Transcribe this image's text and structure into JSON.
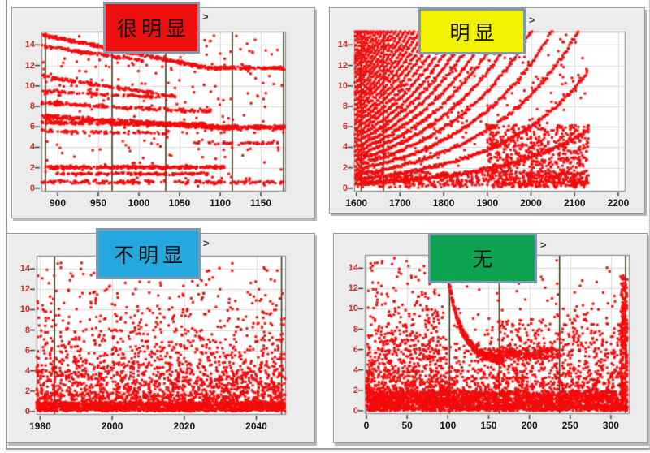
{
  "colors": {
    "page_bg": "#ffffff",
    "panel_bg": "#ececec",
    "plot_bg": "#ffffff",
    "grid": "#d9d9d9",
    "frame": "#8a8a8a",
    "cursor": "#3d3d1c",
    "tick": "#333333",
    "y_tick_color": "#cf2a2a",
    "x_tick_color": "#141414",
    "badge_border": "#7d9ab5",
    "outer_frame": "#8e9296"
  },
  "chart_data": [
    {
      "id": "very-obvious",
      "type": "scatter",
      "badge": {
        "text": "很明显",
        "fill": "#ee0f0f",
        "border": "#7d9ab5",
        "text_color": "#141414"
      },
      "hint": ">",
      "point": {
        "color": "#f40b0b",
        "size": 3
      },
      "xlim": [
        880,
        1180
      ],
      "ylim": [
        -0.25,
        15.3
      ],
      "xticks": [
        900,
        950,
        1000,
        1050,
        1100,
        1150
      ],
      "yticks": [
        0,
        2,
        4,
        6,
        8,
        10,
        12,
        14
      ],
      "cursor_lines": [
        885,
        967,
        1033,
        1115,
        1178
      ],
      "seed": 101,
      "generators": [
        {
          "kind": "track",
          "x0": 880,
          "xf": 1085,
          "x1": 1180,
          "ya": 15.0,
          "yb": 11.75,
          "n": 400,
          "jy": 0.2
        },
        {
          "kind": "track",
          "x0": 880,
          "xf": 1005,
          "x1": 1005,
          "ya": 13.9,
          "yb": 12.45,
          "n": 110,
          "jy": 0.18
        },
        {
          "kind": "track",
          "x0": 880,
          "xf": 1045,
          "x1": 1045,
          "ya": 10.95,
          "yb": 8.95,
          "n": 140,
          "jy": 0.18
        },
        {
          "kind": "track",
          "x0": 880,
          "xf": 1030,
          "x1": 1030,
          "ya": 9.5,
          "yb": 8.85,
          "n": 90,
          "jy": 0.15
        },
        {
          "kind": "track",
          "x0": 880,
          "xf": 1060,
          "x1": 1090,
          "ya": 8.35,
          "yb": 7.55,
          "n": 170,
          "jy": 0.2
        },
        {
          "kind": "track",
          "x0": 880,
          "xf": 1095,
          "x1": 1180,
          "ya": 7.05,
          "yb": 5.95,
          "n": 520,
          "jy": 0.24
        },
        {
          "kind": "track",
          "x0": 880,
          "xf": 1085,
          "x1": 1085,
          "ya": 6.45,
          "yb": 6.2,
          "n": 260,
          "jy": 0.22
        },
        {
          "kind": "track",
          "x0": 880,
          "xf": 1035,
          "x1": 1035,
          "ya": 5.6,
          "yb": 5.35,
          "n": 80,
          "jy": 0.18
        },
        {
          "kind": "track",
          "x0": 1055,
          "xf": 1180,
          "x1": 1180,
          "ya": 4.45,
          "yb": 4.4,
          "n": 45,
          "jy": 0.15
        },
        {
          "kind": "track",
          "x0": 885,
          "xf": 1105,
          "x1": 1105,
          "ya": 2.05,
          "yb": 2.05,
          "n": 300,
          "jy": 0.17
        },
        {
          "kind": "track",
          "x0": 895,
          "xf": 1085,
          "x1": 1085,
          "ya": 1.4,
          "yb": 1.4,
          "n": 150,
          "jy": 0.15
        },
        {
          "kind": "track",
          "x0": 880,
          "xf": 1180,
          "x1": 1180,
          "ya": 0.6,
          "yb": 0.6,
          "n": 170,
          "jy": 0.2
        },
        {
          "kind": "uniform",
          "x0": 880,
          "x1": 1180,
          "y0": 0.2,
          "y1": 15.0,
          "n": 260
        }
      ]
    },
    {
      "id": "obvious",
      "type": "scatter",
      "badge": {
        "text": "明显",
        "fill": "#f2f202",
        "border": "#7d9ab5",
        "text_color": "#141414"
      },
      "hint": ">",
      "point": {
        "color": "#f40b0b",
        "size": 3
      },
      "xlim": [
        1595,
        2215
      ],
      "ylim": [
        -0.25,
        15.3
      ],
      "xticks": [
        1600,
        1700,
        1800,
        1900,
        2000,
        2100,
        2200
      ],
      "yticks": [
        0,
        2,
        4,
        6,
        8,
        10,
        12,
        14
      ],
      "cursor_lines": [
        1611,
        1662
      ],
      "seed": 202,
      "generators": [
        {
          "kind": "fan",
          "x0": 1598,
          "x1": 2132,
          "tau": 210,
          "b_step": 0.45,
          "count": 34,
          "step": 2.2,
          "jy": 0.22
        },
        {
          "kind": "uniform",
          "x0": 1900,
          "x1": 2132,
          "y0": 0.2,
          "y1": 6.2,
          "n": 650
        },
        {
          "kind": "uniform",
          "x0": 1598,
          "x1": 2132,
          "y0": 0.05,
          "y1": 1.6,
          "n": 480
        },
        {
          "kind": "uniform",
          "x0": 1598,
          "x1": 2132,
          "y0": 0.0,
          "y1": 15.2,
          "n": 260
        }
      ]
    },
    {
      "id": "not-obvious",
      "type": "scatter",
      "badge": {
        "text": "不明显",
        "fill": "#25a7e0",
        "border": "#7d9ab5",
        "text_color": "#141414"
      },
      "hint": ">",
      "point": {
        "color": "#f40b0b",
        "size": 3
      },
      "xlim": [
        1979,
        2048
      ],
      "ylim": [
        -0.25,
        15.3
      ],
      "xticks": [
        1980,
        2000,
        2020,
        2040
      ],
      "yticks": [
        0,
        2,
        4,
        6,
        8,
        10,
        12,
        14
      ],
      "cursor_lines": [
        1984,
        2047
      ],
      "seed": 303,
      "generators": [
        {
          "kind": "expdecay",
          "x0": 1979,
          "x1": 2048,
          "scale": 3.1,
          "clip": 15,
          "n": 2300
        },
        {
          "kind": "uniform",
          "x0": 1979,
          "x1": 2048,
          "y0": 0.1,
          "y1": 0.9,
          "n": 1000
        },
        {
          "kind": "uniform",
          "x0": 1979,
          "x1": 2048,
          "y0": 0.0,
          "y1": 14.6,
          "n": 240
        }
      ]
    },
    {
      "id": "none",
      "type": "scatter",
      "badge": {
        "text": "无",
        "fill": "#0da351",
        "border": "#7d9ab5",
        "text_color": "#141414"
      },
      "hint": ">",
      "point": {
        "color": "#f40b0b",
        "size": 3
      },
      "xlim": [
        -2,
        322
      ],
      "ylim": [
        -0.25,
        15.3
      ],
      "xticks": [
        0,
        50,
        100,
        150,
        200,
        250,
        300
      ],
      "yticks": [
        0,
        2,
        4,
        6,
        8,
        10,
        12,
        14
      ],
      "cursor_lines": [
        102,
        163,
        237,
        318
      ],
      "seed": 404,
      "generators": [
        {
          "kind": "expdecay",
          "x0": 0,
          "x1": 320,
          "scale": 2.6,
          "clip": 15,
          "n": 2000
        },
        {
          "kind": "uniform",
          "x0": 0,
          "x1": 320,
          "y0": 0.0,
          "y1": 1.9,
          "n": 1600
        },
        {
          "kind": "expdecay",
          "x0": 0,
          "x1": 95,
          "scale": 5.5,
          "clip": 15,
          "n": 650
        },
        {
          "kind": "curve",
          "x0": 100,
          "x1": 168,
          "base": 4.9,
          "amp": 8.2,
          "tau": 17,
          "n": 430,
          "jy": 0.5
        },
        {
          "kind": "uniform",
          "x0": 148,
          "x1": 238,
          "y0": 5.1,
          "y1": 6.15,
          "n": 220
        },
        {
          "kind": "uniform",
          "x0": 312,
          "x1": 320,
          "y0": 0.0,
          "y1": 13.5,
          "n": 240
        },
        {
          "kind": "uniform",
          "x0": 160,
          "x1": 320,
          "y0": 2.0,
          "y1": 9.0,
          "n": 280
        }
      ]
    }
  ]
}
